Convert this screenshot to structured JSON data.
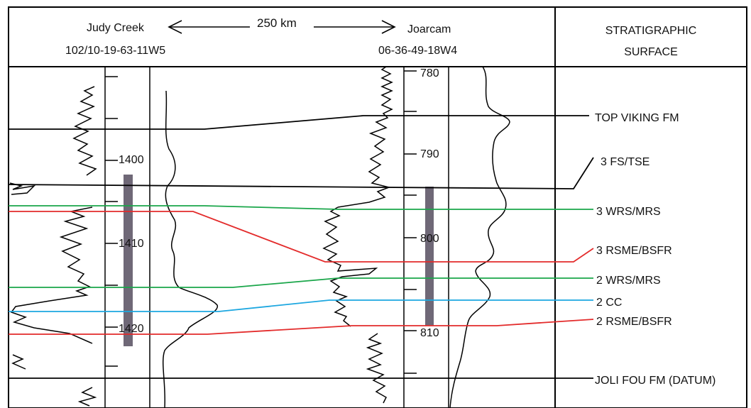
{
  "header": {
    "left_well_name": "Judy Creek",
    "left_well_id": "102/10-19-63-11W5",
    "distance": "250 km",
    "right_well_name": "Joarcam",
    "right_well_id": "06-36-49-18W4",
    "column_title_line1": "STRATIGRAPHIC",
    "column_title_line2": "SURFACE"
  },
  "left_depth_labels": [
    "1400",
    "1410",
    "1420"
  ],
  "right_depth_labels": [
    "780",
    "790",
    "800",
    "810"
  ],
  "surfaces": [
    {
      "label": "TOP VIKING FM",
      "color": "#000000"
    },
    {
      "label": "3 FS/TSE",
      "color": "#000000"
    },
    {
      "label": "3 WRS/MRS",
      "color": "#1aa64a"
    },
    {
      "label": "3 RSME/BSFR",
      "color": "#e32b2b"
    },
    {
      "label": "2 WRS/MRS",
      "color": "#1aa64a"
    },
    {
      "label": "2 CC",
      "color": "#1da7e0"
    },
    {
      "label": "2 RSME/BSFR",
      "color": "#e32b2b"
    },
    {
      "label": "JOLI FOU FM (DATUM)",
      "color": "#000000"
    }
  ],
  "core_bar_color": "#6f6877"
}
